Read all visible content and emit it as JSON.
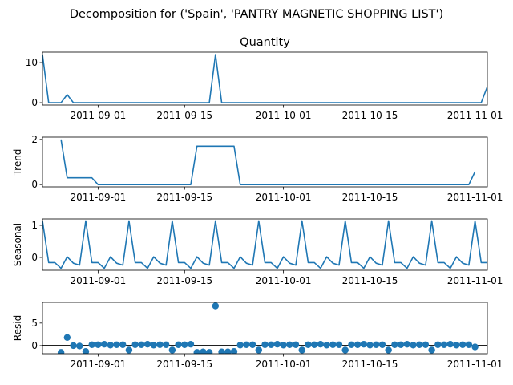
{
  "chart_data": {
    "type": "line",
    "title": "Decomposition for ('Spain', 'PANTRY MAGNETIC  SHOPPING LIST')",
    "color": "#1f77b4",
    "x": {
      "start": "2011-08-23",
      "end": "2011-11-03",
      "ticks": [
        "2011-09-01",
        "2011-09-15",
        "2011-10-01",
        "2011-10-15",
        "2011-11-01"
      ]
    },
    "panels": [
      {
        "name": "quantity",
        "title": "Quantity",
        "ylabel": "",
        "kind": "line",
        "ylim": [
          -0.6,
          12.6
        ],
        "yticks": [
          0,
          10
        ],
        "points": [
          [
            "2011-08-23",
            12
          ],
          [
            "2011-08-24",
            0
          ],
          [
            "2011-08-26",
            0
          ],
          [
            "2011-08-27",
            2
          ],
          [
            "2011-08-28",
            0
          ],
          [
            "2011-09-19",
            0
          ],
          [
            "2011-09-20",
            12
          ],
          [
            "2011-09-21",
            0
          ],
          [
            "2011-11-02",
            0
          ],
          [
            "2011-11-03",
            4
          ]
        ]
      },
      {
        "name": "trend",
        "title": "",
        "ylabel": "Trend",
        "kind": "line",
        "ylim": [
          -0.1,
          2.1
        ],
        "yticks": [
          0,
          2
        ],
        "points": [
          [
            "2011-08-26",
            2.0
          ],
          [
            "2011-08-27",
            0.3
          ],
          [
            "2011-08-31",
            0.3
          ],
          [
            "2011-09-01",
            0.0
          ],
          [
            "2011-09-16",
            0.0
          ],
          [
            "2011-09-17",
            1.7
          ],
          [
            "2011-09-23",
            1.7
          ],
          [
            "2011-09-24",
            0.0
          ],
          [
            "2011-10-31",
            0.0
          ],
          [
            "2011-11-01",
            0.57
          ]
        ]
      },
      {
        "name": "seasonal",
        "title": "",
        "ylabel": "Seasonal",
        "kind": "line",
        "ylim": [
          -0.4,
          1.2
        ],
        "yticks": [
          0,
          1
        ],
        "pattern": [
          1.14,
          -0.16,
          -0.16,
          -0.34,
          0.02,
          -0.18,
          -0.24
        ],
        "pattern_start": "2011-08-23"
      },
      {
        "name": "resid",
        "title": "",
        "ylabel": "Resid",
        "kind": "scatter",
        "ylim": [
          -1.8,
          9.6
        ],
        "yticks": [
          0,
          5
        ],
        "zero_line": true,
        "points": [
          [
            "2011-08-26",
            -1.5
          ],
          [
            "2011-08-27",
            1.8
          ],
          [
            "2011-08-28",
            0.0
          ],
          [
            "2011-08-29",
            -0.1
          ],
          [
            "2011-08-30",
            -1.3
          ],
          [
            "2011-08-31",
            0.2
          ],
          [
            "2011-09-01",
            0.2
          ],
          [
            "2011-09-02",
            0.3
          ],
          [
            "2011-09-03",
            0.1
          ],
          [
            "2011-09-04",
            0.2
          ],
          [
            "2011-09-05",
            0.2
          ],
          [
            "2011-09-06",
            -1.0
          ],
          [
            "2011-09-07",
            0.2
          ],
          [
            "2011-09-08",
            0.2
          ],
          [
            "2011-09-09",
            0.3
          ],
          [
            "2011-09-10",
            0.1
          ],
          [
            "2011-09-11",
            0.2
          ],
          [
            "2011-09-12",
            0.2
          ],
          [
            "2011-09-13",
            -1.0
          ],
          [
            "2011-09-14",
            0.2
          ],
          [
            "2011-09-15",
            0.2
          ],
          [
            "2011-09-16",
            0.3
          ],
          [
            "2011-09-17",
            -1.5
          ],
          [
            "2011-09-18",
            -1.4
          ],
          [
            "2011-09-19",
            -1.5
          ],
          [
            "2011-09-20",
            8.8
          ],
          [
            "2011-09-21",
            -1.4
          ],
          [
            "2011-09-22",
            -1.4
          ],
          [
            "2011-09-23",
            -1.3
          ],
          [
            "2011-09-24",
            0.1
          ],
          [
            "2011-09-25",
            0.2
          ],
          [
            "2011-09-26",
            0.2
          ],
          [
            "2011-09-27",
            -1.0
          ],
          [
            "2011-09-28",
            0.2
          ],
          [
            "2011-09-29",
            0.2
          ],
          [
            "2011-09-30",
            0.3
          ],
          [
            "2011-10-01",
            0.1
          ],
          [
            "2011-10-02",
            0.2
          ],
          [
            "2011-10-03",
            0.2
          ],
          [
            "2011-10-04",
            -1.0
          ],
          [
            "2011-10-05",
            0.2
          ],
          [
            "2011-10-06",
            0.2
          ],
          [
            "2011-10-07",
            0.3
          ],
          [
            "2011-10-08",
            0.1
          ],
          [
            "2011-10-09",
            0.2
          ],
          [
            "2011-10-10",
            0.2
          ],
          [
            "2011-10-11",
            -1.0
          ],
          [
            "2011-10-12",
            0.2
          ],
          [
            "2011-10-13",
            0.2
          ],
          [
            "2011-10-14",
            0.3
          ],
          [
            "2011-10-15",
            0.1
          ],
          [
            "2011-10-16",
            0.2
          ],
          [
            "2011-10-17",
            0.2
          ],
          [
            "2011-10-18",
            -1.0
          ],
          [
            "2011-10-19",
            0.2
          ],
          [
            "2011-10-20",
            0.2
          ],
          [
            "2011-10-21",
            0.3
          ],
          [
            "2011-10-22",
            0.1
          ],
          [
            "2011-10-23",
            0.2
          ],
          [
            "2011-10-24",
            0.2
          ],
          [
            "2011-10-25",
            -1.0
          ],
          [
            "2011-10-26",
            0.2
          ],
          [
            "2011-10-27",
            0.2
          ],
          [
            "2011-10-28",
            0.3
          ],
          [
            "2011-10-29",
            0.1
          ],
          [
            "2011-10-30",
            0.2
          ],
          [
            "2011-10-31",
            0.2
          ],
          [
            "2011-11-01",
            -0.3
          ]
        ]
      }
    ]
  }
}
